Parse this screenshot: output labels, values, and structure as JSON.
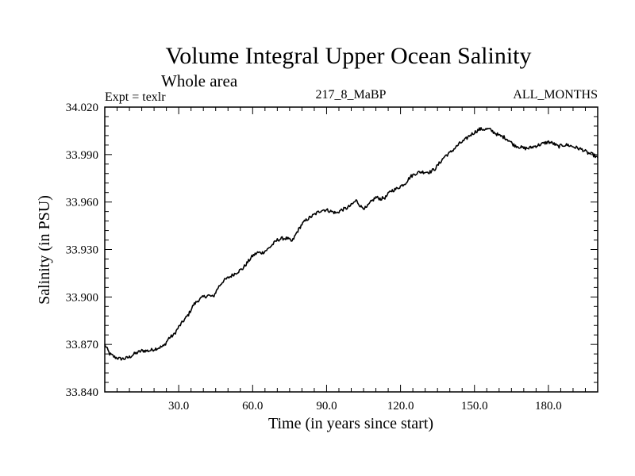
{
  "chart_data": {
    "type": "line",
    "title": "Volume Integral Upper Ocean Salinity",
    "subtitle": "Whole area",
    "experiment_label": "Expt = texlr",
    "run_label": "217_8_MaBP",
    "months_label": "ALL_MONTHS",
    "xlabel": "Time (in years since start)",
    "ylabel": "Salinity (in PSU)",
    "xlim": [
      0,
      200
    ],
    "ylim": [
      33.84,
      34.02
    ],
    "x_ticks": [
      30,
      60,
      90,
      120,
      150,
      180
    ],
    "x_tick_labels": [
      "30.0",
      "60.0",
      "90.0",
      "120.0",
      "150.0",
      "180.0"
    ],
    "y_ticks": [
      33.84,
      33.87,
      33.9,
      33.93,
      33.96,
      33.99,
      34.02
    ],
    "y_tick_labels": [
      "33.840",
      "33.870",
      "33.900",
      "33.930",
      "33.960",
      "33.990",
      "34.020"
    ],
    "grid": false,
    "series": [
      {
        "name": "salinity",
        "color": "#000000",
        "x": [
          0,
          1,
          2,
          4,
          6,
          8,
          10,
          12,
          15,
          18,
          20,
          22,
          24,
          26,
          28,
          30,
          32,
          34,
          36,
          38,
          40,
          42,
          44,
          46,
          48,
          50,
          52,
          54,
          56,
          58,
          60,
          62,
          64,
          66,
          68,
          70,
          72,
          74,
          76,
          78,
          80,
          82,
          84,
          86,
          88,
          90,
          92,
          94,
          96,
          98,
          100,
          102,
          104,
          106,
          108,
          110,
          112,
          114,
          116,
          118,
          120,
          122,
          124,
          126,
          128,
          130,
          132,
          134,
          136,
          138,
          140,
          142,
          144,
          146,
          148,
          150,
          152,
          154,
          156,
          158,
          160,
          162,
          164,
          166,
          168,
          170,
          172,
          174,
          176,
          178,
          180,
          182,
          184,
          186,
          188,
          190,
          192,
          194,
          196,
          198,
          200
        ],
        "y": [
          33.87,
          33.867,
          33.864,
          33.862,
          33.861,
          33.861,
          33.862,
          33.864,
          33.866,
          33.866,
          33.867,
          33.868,
          33.869,
          33.874,
          33.876,
          33.881,
          33.885,
          33.889,
          33.895,
          33.898,
          33.9,
          33.901,
          33.9,
          33.906,
          33.91,
          33.912,
          33.914,
          33.916,
          33.918,
          33.922,
          33.926,
          33.928,
          33.928,
          33.93,
          33.933,
          33.936,
          33.937,
          33.937,
          33.935,
          33.941,
          33.946,
          33.949,
          33.951,
          33.953,
          33.955,
          33.955,
          33.954,
          33.953,
          33.955,
          33.956,
          33.958,
          33.961,
          33.957,
          33.956,
          33.96,
          33.963,
          33.962,
          33.963,
          33.967,
          33.968,
          33.97,
          33.972,
          33.976,
          33.978,
          33.979,
          33.979,
          33.979,
          33.981,
          33.985,
          33.989,
          33.991,
          33.994,
          33.997,
          33.999,
          34.002,
          34.004,
          34.006,
          34.006,
          34.006,
          34.004,
          34.002,
          34.001,
          33.999,
          33.996,
          33.995,
          33.994,
          33.994,
          33.995,
          33.996,
          33.997,
          33.998,
          33.997,
          33.995,
          33.996,
          33.996,
          33.995,
          33.994,
          33.993,
          33.991,
          33.99,
          33.988
        ]
      }
    ]
  }
}
